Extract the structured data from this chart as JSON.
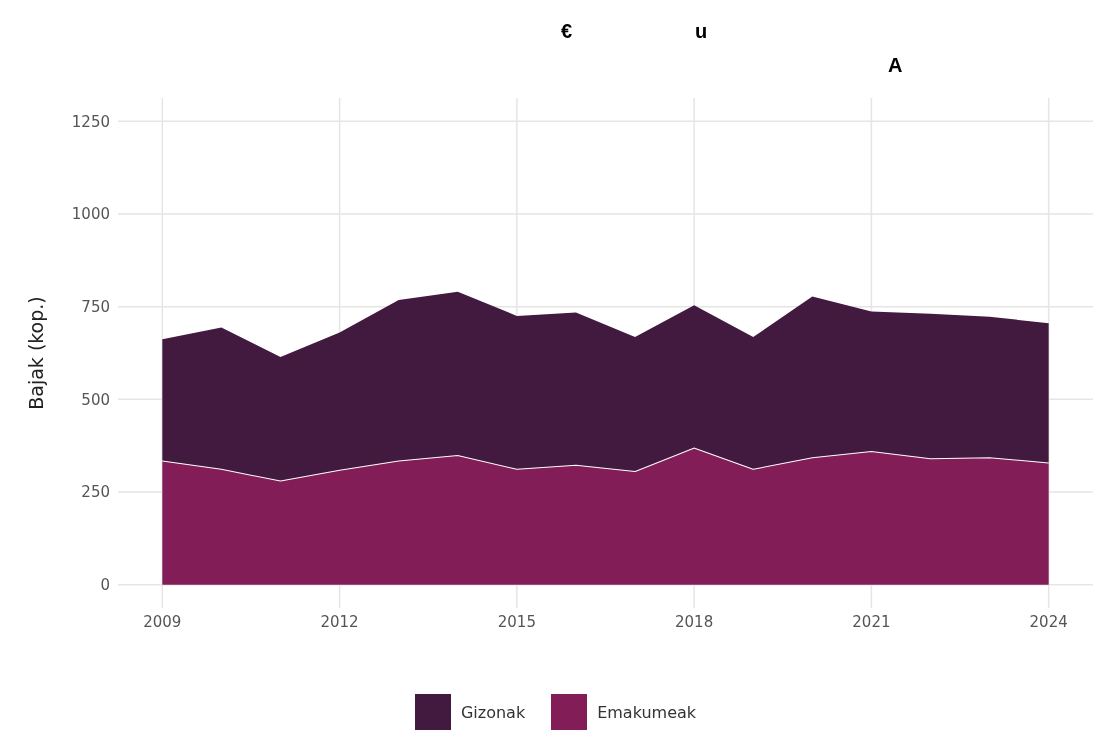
{
  "chart_data": {
    "type": "area",
    "stacked": true,
    "annotations": [
      "€",
      "u",
      "A"
    ],
    "ylabel": "Bajak (kop.)",
    "x": [
      2009,
      2010,
      2011,
      2012,
      2013,
      2014,
      2015,
      2016,
      2017,
      2018,
      2019,
      2020,
      2021,
      2022,
      2023,
      2024
    ],
    "series": [
      {
        "name": "Emakumeak",
        "color": "#831d57",
        "values": [
          335,
          313,
          281,
          310,
          335,
          350,
          313,
          324,
          307,
          370,
          313,
          344,
          361,
          341,
          344,
          330
        ]
      },
      {
        "name": "Gizonak",
        "color": "#421a40",
        "values": [
          327,
          381,
          333,
          370,
          433,
          440,
          412,
          410,
          361,
          384,
          355,
          433,
          376,
          390,
          379,
          375
        ]
      }
    ],
    "xlim": [
      2008.25,
      2024.75
    ],
    "xticks": [
      2009,
      2012,
      2015,
      2018,
      2021,
      2024
    ],
    "ylim": [
      -62.5,
      1312.5
    ],
    "yticks": [
      0,
      250,
      500,
      750,
      1000,
      1250
    ],
    "grid": true,
    "legend": "bottom"
  }
}
